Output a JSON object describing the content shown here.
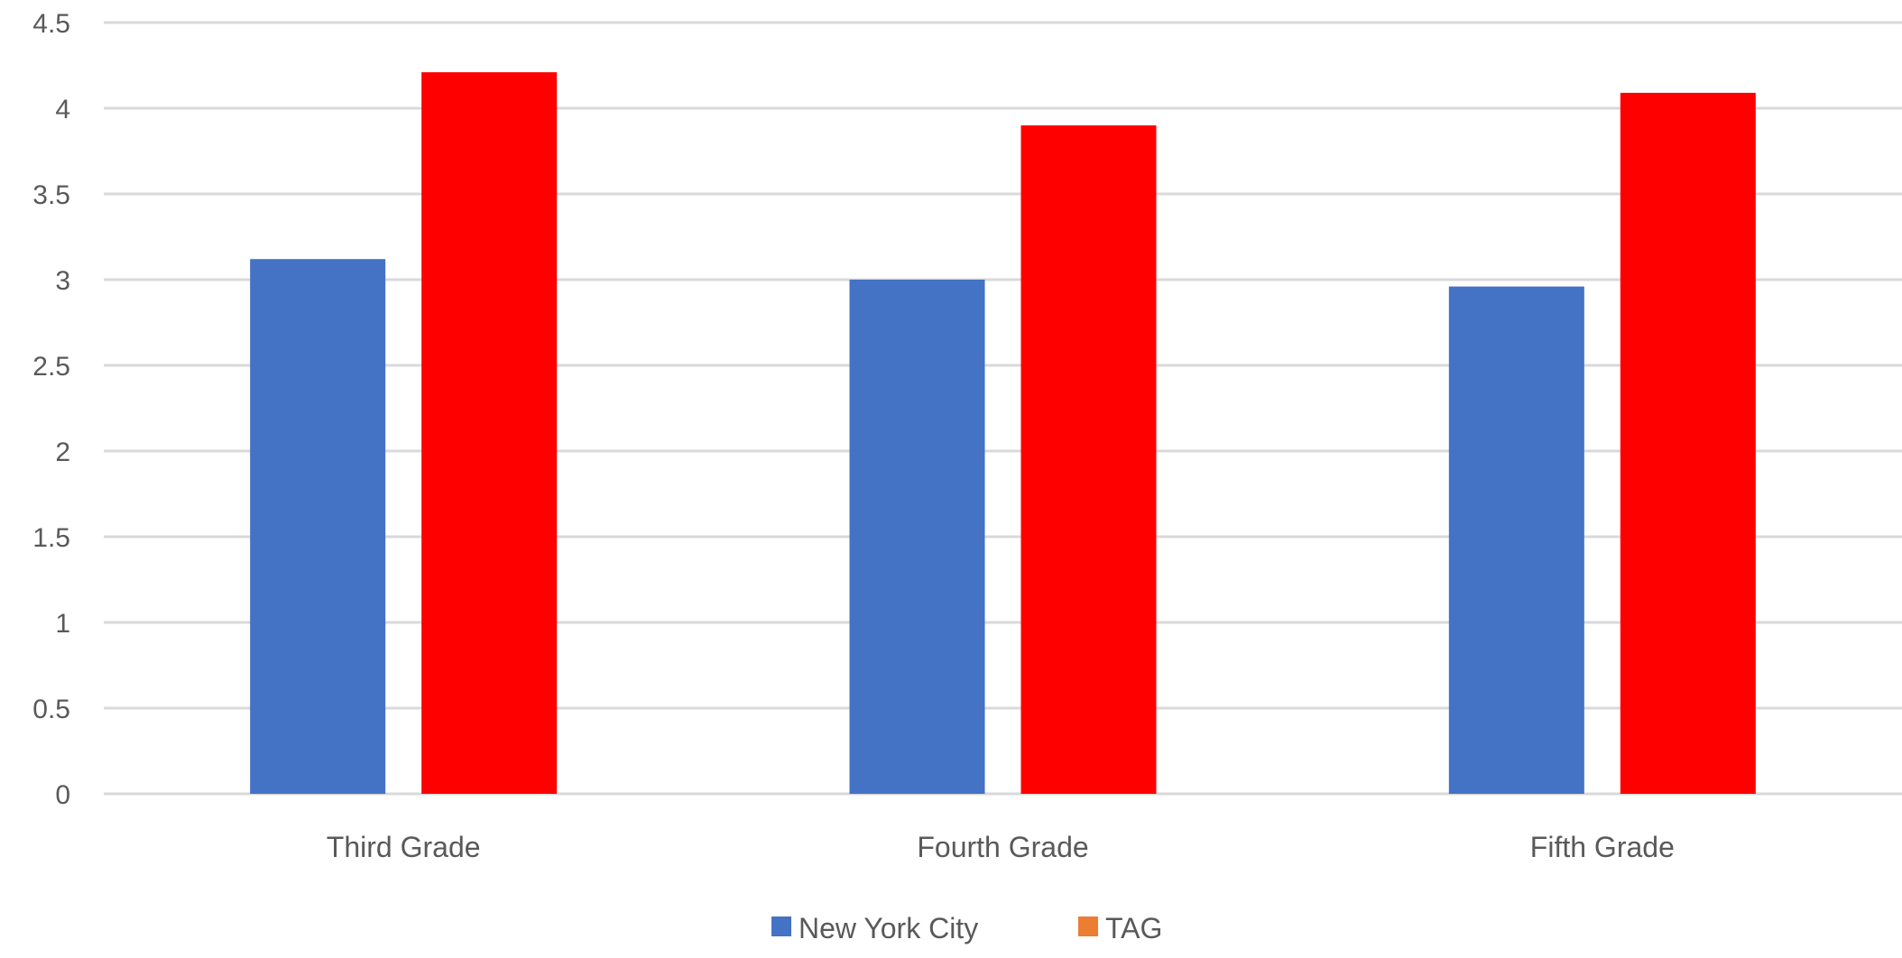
{
  "chart_data": {
    "type": "bar",
    "categories": [
      "Third Grade",
      "Fourth Grade",
      "Fifth Grade"
    ],
    "series": [
      {
        "name": "New York City",
        "values": [
          3.12,
          3.0,
          2.96
        ],
        "color": "#4472C4",
        "legend_color": "#4472C4"
      },
      {
        "name": "TAG",
        "values": [
          4.21,
          3.9,
          4.09
        ],
        "color": "#FF0000",
        "legend_color": "#ED7D31"
      }
    ],
    "ylim": [
      0,
      4.5
    ],
    "yticks": [
      "0",
      "0.5",
      "1",
      "1.5",
      "2",
      "2.5",
      "3",
      "3.5",
      "4",
      "4.5"
    ],
    "grid": true,
    "legend_position": "bottom",
    "title": "",
    "xlabel": "",
    "ylabel": ""
  }
}
